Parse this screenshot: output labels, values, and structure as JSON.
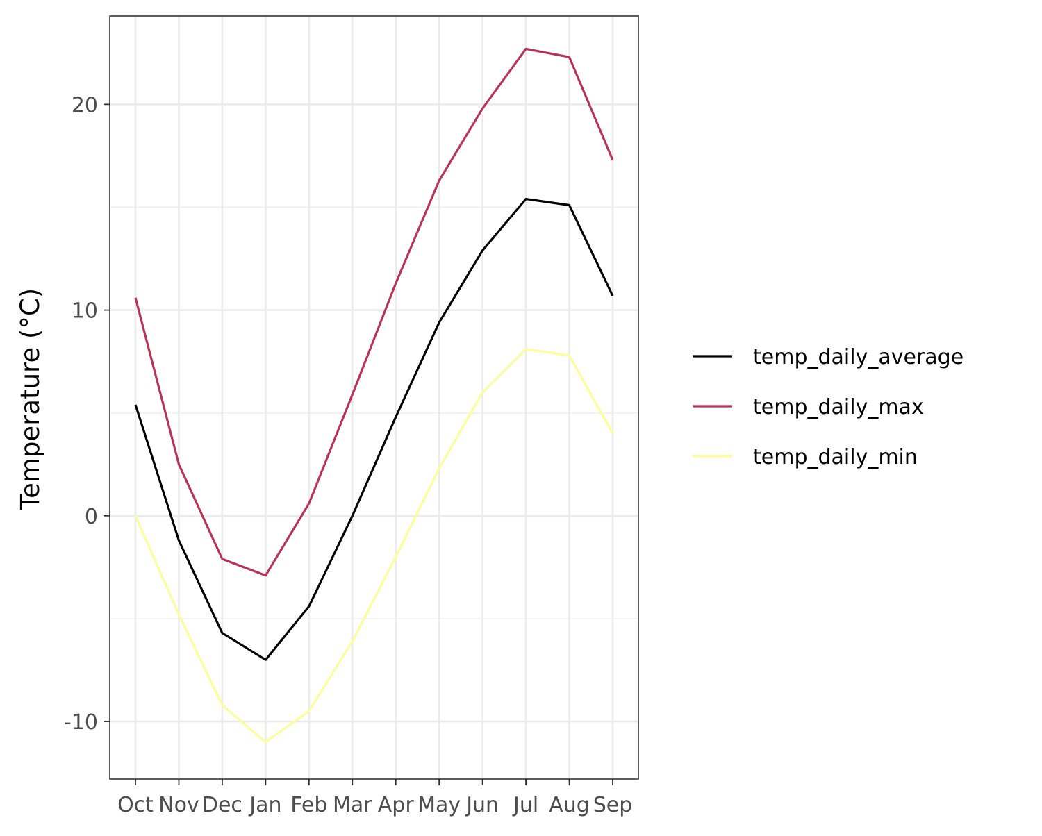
{
  "chart_data": {
    "type": "line",
    "title": "",
    "xlabel": "",
    "ylabel": "Temperature (°C)",
    "categories": [
      "Oct",
      "Nov",
      "Dec",
      "Jan",
      "Feb",
      "Mar",
      "Apr",
      "May",
      "Jun",
      "Jul",
      "Aug",
      "Sep"
    ],
    "ylim": [
      -12.8,
      24.3
    ],
    "y_ticks": [
      -10,
      0,
      10,
      20
    ],
    "y_tick_labels": [
      "-10",
      "0",
      "10",
      "20"
    ],
    "grid": true,
    "legend_position": "right",
    "series": [
      {
        "name": "temp_daily_average",
        "color": "#000000",
        "values": [
          5.4,
          -1.2,
          -5.7,
          -7.0,
          -4.4,
          0.0,
          4.8,
          9.4,
          12.9,
          15.4,
          15.1,
          10.7
        ]
      },
      {
        "name": "temp_daily_max",
        "color": "#b83456",
        "values": [
          10.6,
          2.5,
          -2.1,
          -2.9,
          0.6,
          5.9,
          11.3,
          16.3,
          19.8,
          22.7,
          22.3,
          17.3
        ]
      },
      {
        "name": "temp_daily_min",
        "color": "#fcfd9b",
        "values": [
          0.0,
          -4.8,
          -9.2,
          -11.0,
          -9.5,
          -6.1,
          -2.0,
          2.3,
          6.0,
          8.1,
          7.8,
          4.0
        ]
      }
    ]
  }
}
